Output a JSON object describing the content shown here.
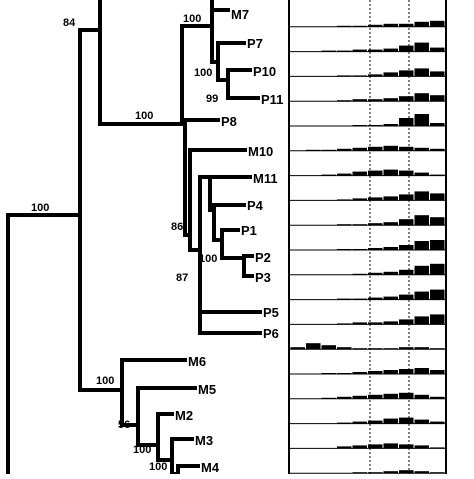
{
  "tree": {
    "leaves": [
      "M7",
      "P7",
      "P10",
      "P11",
      "P8",
      "M10",
      "M11",
      "P4",
      "P1",
      "P2",
      "P3",
      "P5",
      "P6",
      "M6",
      "M5",
      "M2",
      "M3",
      "M4"
    ],
    "bootstrap": [
      "84",
      "100",
      "100",
      "99",
      "100",
      "86",
      "100",
      "87",
      "100",
      "100",
      "56",
      "100",
      "100"
    ]
  },
  "histograms": {
    "rows": 19,
    "fill_color": "#000000",
    "grid_color": "#000000"
  }
}
